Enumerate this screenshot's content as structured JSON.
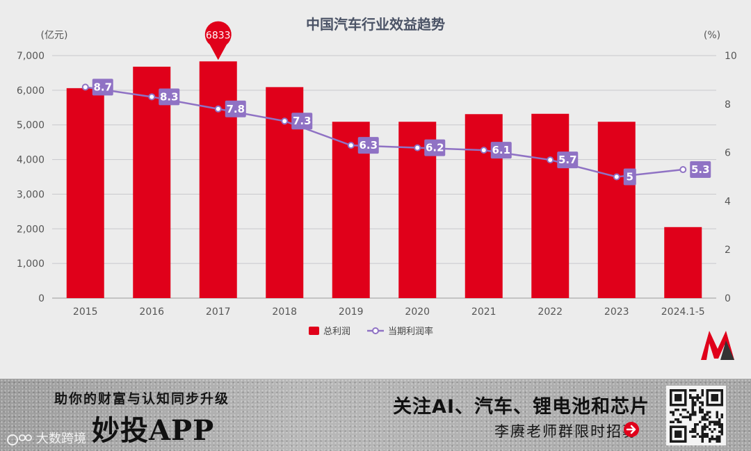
{
  "chart_data": {
    "type": "bar+line",
    "title": "中国汽车行业效益趋势",
    "categories": [
      "2015",
      "2016",
      "2017",
      "2018",
      "2019",
      "2020",
      "2021",
      "2022",
      "2023",
      "2024.1-5"
    ],
    "series": [
      {
        "name": "总利润",
        "type": "bar",
        "axis": "left",
        "unit": "亿元",
        "color": "#e0001a",
        "values": [
          6060,
          6680,
          6833,
          6090,
          5090,
          5090,
          5310,
          5320,
          5090,
          2050
        ]
      },
      {
        "name": "当期利润率",
        "type": "line",
        "axis": "right",
        "unit": "%",
        "color": "#8f72c4",
        "values": [
          8.7,
          8.3,
          7.8,
          7.3,
          6.3,
          6.2,
          6.1,
          5.7,
          5,
          5.3
        ],
        "labels": [
          "8.7",
          "8.3",
          "7.8",
          "7.3",
          "6.3",
          "6.2",
          "6.1",
          "5.7",
          "5",
          "5.3"
        ]
      }
    ],
    "left_axis": {
      "unit_label": "(亿元)",
      "range": [
        0,
        7000
      ],
      "ticks": [
        "0",
        "1,000",
        "2,000",
        "3,000",
        "4,000",
        "5,000",
        "6,000",
        "7,000"
      ]
    },
    "right_axis": {
      "unit_label": "(%)",
      "range": [
        0,
        10
      ],
      "ticks": [
        "0",
        "2",
        "4",
        "6",
        "8",
        "10"
      ]
    },
    "max_marker": {
      "category": "2017",
      "label": "6833"
    },
    "legend": {
      "position": "bottom",
      "items": [
        "总利润",
        "当期利润率"
      ]
    },
    "grid": true
  },
  "banner": {
    "slogan": "助你的财富与认知同步升级",
    "brand": "妙投APP",
    "watermark": "大数跨境",
    "headline": "关注AI、汽车、锂电池和芯片",
    "recruit": "李赓老师群限时招募"
  },
  "icons": {
    "logo": "miaotou-m-logo",
    "qr": "qr-code",
    "arrow": "arrow-right-circle-icon",
    "watermark_logo": "weibo-logo"
  }
}
